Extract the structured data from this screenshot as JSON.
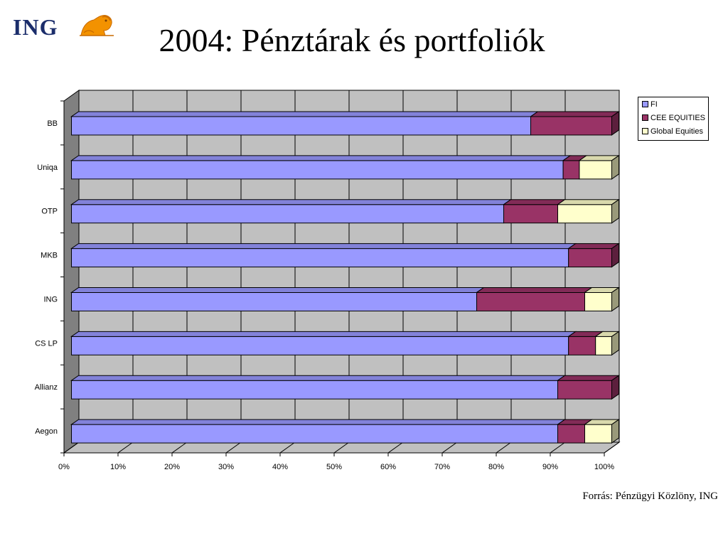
{
  "logo": {
    "text": "ING",
    "icon": "lion-icon"
  },
  "title": "2004: Pénztárak és portfoliók",
  "source": "Forrás: Pénzügyi Közlöny, ING",
  "colors": {
    "fi": "#9999ff",
    "cee": "#993366",
    "global": "#ffffcc",
    "wall": "#c0c0c0",
    "wall_side": "#808080",
    "brand": "#1b2d6b",
    "lion": "#f39200"
  },
  "chart_data": {
    "type": "bar",
    "orientation": "horizontal",
    "stacked": "percent",
    "style": "3d",
    "categories": [
      "BB",
      "Uniqa",
      "OTP",
      "MKB",
      "ING",
      "CS LP",
      "Allianz",
      "Aegon"
    ],
    "series": [
      {
        "name": "FI",
        "color": "#9999ff",
        "values": [
          85,
          91,
          80,
          92,
          75,
          92,
          90,
          90
        ]
      },
      {
        "name": "CEE EQUITIES",
        "color": "#993366",
        "values": [
          15,
          3,
          10,
          8,
          20,
          5,
          10,
          5
        ]
      },
      {
        "name": "Global Equities",
        "color": "#ffffcc",
        "values": [
          0,
          6,
          10,
          0,
          5,
          3,
          0,
          5
        ]
      }
    ],
    "xticks": [
      "0%",
      "10%",
      "20%",
      "30%",
      "40%",
      "50%",
      "60%",
      "70%",
      "80%",
      "90%",
      "100%"
    ],
    "xlim": [
      0,
      100
    ],
    "grid": true,
    "legend_position": "top-right"
  }
}
